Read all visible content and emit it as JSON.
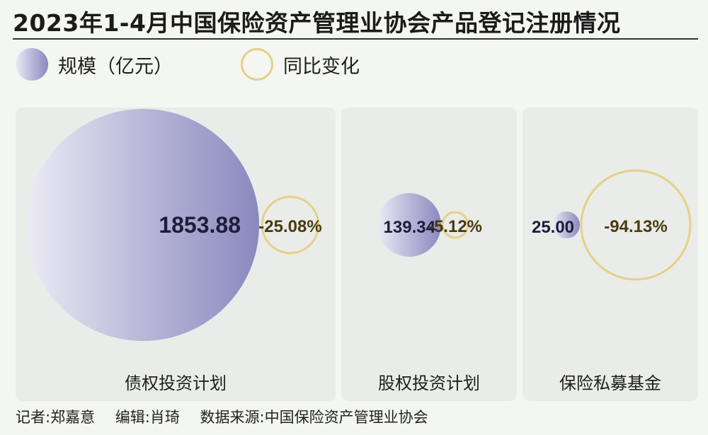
{
  "title": "2023年1-4月中国保险资产管理业协会产品登记注册情况",
  "legend": {
    "size_label": "规模（亿元）",
    "change_label": "同比变化"
  },
  "colors": {
    "size_gradient_light": "#ecebf5",
    "size_gradient_dark": "#8a89bf",
    "change_ring": "#e6cf87",
    "change_text": "#4a3a10",
    "value_text": "#1e1e3a",
    "panel_bg": "#e9ece8"
  },
  "chart_data": {
    "type": "bubble",
    "title": "2023年1-4月中国保险资产管理业协会产品登记注册情况",
    "series": [
      {
        "name": "规模（亿元）",
        "values": [
          1853.88,
          139.34,
          25.0
        ]
      },
      {
        "name": "同比变化",
        "values": [
          -25.08,
          -5.12,
          -94.13
        ]
      }
    ],
    "categories": [
      "债权投资计划",
      "股权投资计划",
      "保险私募基金"
    ],
    "value_labels": [
      "1853.88",
      "139.34",
      "25.00"
    ],
    "change_labels": [
      "-25.08%",
      "-5.12%",
      "-94.13%"
    ]
  },
  "footer": {
    "reporter": "记者:郑嘉意",
    "editor": "编辑:肖琦",
    "source": "数据来源:中国保险资产管理业协会"
  }
}
